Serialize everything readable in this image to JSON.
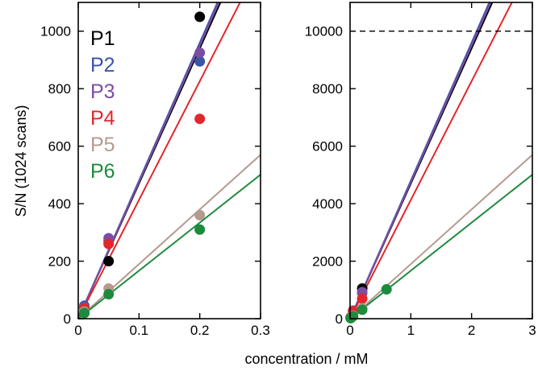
{
  "chart_data": [
    {
      "type": "scatter",
      "panel": "left",
      "xlabel": "",
      "ylabel": "S/N (1024 scans)",
      "xlim": [
        0,
        0.3
      ],
      "ylim": [
        0,
        1100
      ],
      "xticks": [
        0,
        0.1,
        0.2,
        0.3
      ],
      "xtick_labels": [
        "0",
        "0.1",
        "0.2",
        "0.3"
      ],
      "yticks": [
        0,
        200,
        400,
        600,
        800,
        1000
      ],
      "ytick_labels": [
        "0",
        "200",
        "400",
        "600",
        "800",
        "1000"
      ],
      "legend_placement": "top-left",
      "series": [
        {
          "name": "P1",
          "color": "#000000",
          "x": [
            0.01,
            0.05,
            0.2
          ],
          "y": [
            20,
            200,
            1050
          ],
          "fit_slope": 4700
        },
        {
          "name": "P2",
          "color": "#3a55a4",
          "x": [
            0.01,
            0.05,
            0.2
          ],
          "y": [
            45,
            270,
            895
          ],
          "fit_slope": 4800
        },
        {
          "name": "P3",
          "color": "#7b4ea3",
          "x": [
            0.01,
            0.05,
            0.2
          ],
          "y": [
            40,
            280,
            925
          ],
          "fit_slope": 4750
        },
        {
          "name": "P4",
          "color": "#e3262b",
          "x": [
            0.01,
            0.05,
            0.2
          ],
          "y": [
            35,
            260,
            695
          ],
          "fit_slope": 4130
        },
        {
          "name": "P5",
          "color": "#b59a90",
          "x": [
            0.01,
            0.05,
            0.2
          ],
          "y": [
            25,
            105,
            360
          ],
          "fit_slope": 1900
        },
        {
          "name": "P6",
          "color": "#1e8a3e",
          "x": [
            0.01,
            0.05,
            0.2
          ],
          "y": [
            20,
            85,
            310
          ],
          "fit_slope": 1670
        }
      ]
    },
    {
      "type": "scatter",
      "panel": "right",
      "xlabel": "",
      "ylabel": "",
      "xlim": [
        0,
        3
      ],
      "ylim": [
        0,
        11000
      ],
      "xticks": [
        0,
        1,
        2,
        3
      ],
      "xtick_labels": [
        "0",
        "1",
        "2",
        "3"
      ],
      "yticks": [
        0,
        2000,
        4000,
        6000,
        8000,
        10000
      ],
      "ytick_labels": [
        "0",
        "2000",
        "4000",
        "6000",
        "8000",
        "10000"
      ],
      "reference_line": {
        "y": 10000,
        "style": "dashed"
      },
      "series": [
        {
          "name": "P1",
          "color": "#000000",
          "x": [
            0.01,
            0.05,
            0.2
          ],
          "y": [
            20,
            200,
            1050
          ],
          "fit_slope": 4700
        },
        {
          "name": "P2",
          "color": "#3a55a4",
          "x": [
            0.01,
            0.05,
            0.2
          ],
          "y": [
            45,
            270,
            895
          ],
          "fit_slope": 4800
        },
        {
          "name": "P3",
          "color": "#7b4ea3",
          "x": [
            0.01,
            0.05,
            0.2
          ],
          "y": [
            40,
            280,
            925
          ],
          "fit_slope": 4750
        },
        {
          "name": "P4",
          "color": "#e3262b",
          "x": [
            0.01,
            0.05,
            0.2
          ],
          "y": [
            35,
            260,
            695
          ],
          "fit_slope": 4130
        },
        {
          "name": "P5",
          "color": "#b59a90",
          "x": [
            0.01,
            0.05,
            0.2
          ],
          "y": [
            25,
            105,
            360
          ],
          "fit_slope": 1900
        },
        {
          "name": "P6",
          "color": "#1e8a3e",
          "x": [
            0.01,
            0.05,
            0.2,
            0.6
          ],
          "y": [
            20,
            85,
            310,
            1020
          ],
          "fit_slope": 1670
        }
      ]
    }
  ],
  "shared_xlabel": "concentration / mM"
}
